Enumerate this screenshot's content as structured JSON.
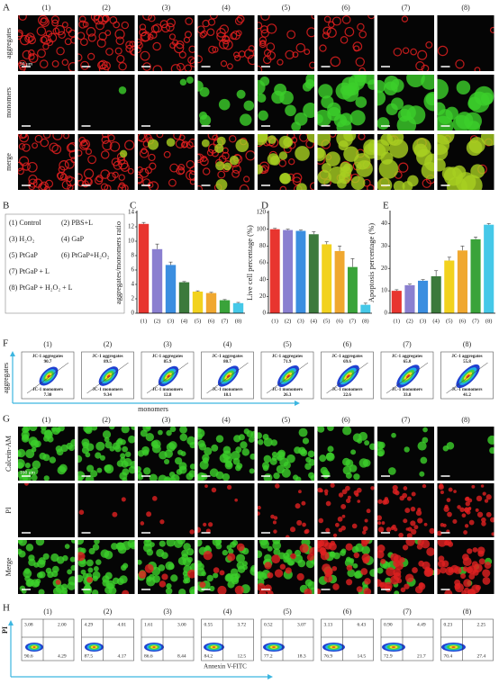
{
  "panel_a": {
    "letter": "A",
    "columns": [
      "(1)",
      "(2)",
      "(3)",
      "(4)",
      "(5)",
      "(6)",
      "(7)",
      "(8)"
    ],
    "rows": [
      "aggregates",
      "monomers",
      "merge"
    ],
    "scale_bar": "50 μm"
  },
  "panel_b": {
    "letter": "B",
    "legend": [
      "(1) Control",
      "(2) PBS+L",
      "(3) H₂O₂",
      "(4) GaP",
      "(5) PtGaP",
      "(6) PtGaP+H₂O₂",
      "(7) PtGaP + L",
      "(8) PtGaP + H₂O₂ + L"
    ]
  },
  "chart_data": [
    {
      "type": "bar",
      "letter": "C",
      "y_label": "aggregates/monomers ratio",
      "categories": [
        "(1)",
        "(2)",
        "(3)",
        "(4)",
        "(5)",
        "(6)",
        "(7)",
        "(8)"
      ],
      "values": [
        12.4,
        8.9,
        6.7,
        4.3,
        3.0,
        2.8,
        1.8,
        1.4
      ],
      "errors": [
        0.2,
        0.7,
        0.4,
        0.1,
        0.1,
        0.1,
        0.1,
        0.1
      ],
      "colors": [
        "#e8352f",
        "#8a7fd0",
        "#3b8ee0",
        "#3c7a3c",
        "#f2d21e",
        "#f0a830",
        "#3aa33a",
        "#45c8e8"
      ],
      "ylim": [
        0,
        14
      ],
      "yticks": [
        0,
        2,
        4,
        6,
        8,
        10,
        12,
        14
      ]
    },
    {
      "type": "bar",
      "letter": "D",
      "y_label": "Live cell percentage (%)",
      "categories": [
        "(1)",
        "(2)",
        "(3)",
        "(4)",
        "(5)",
        "(6)",
        "(7)",
        "(8)"
      ],
      "values": [
        100,
        99,
        98,
        94,
        82,
        74,
        55,
        10
      ],
      "errors": [
        1,
        1,
        1,
        3,
        3,
        6,
        10,
        2
      ],
      "colors": [
        "#e8352f",
        "#8a7fd0",
        "#3b8ee0",
        "#3c7a3c",
        "#f2d21e",
        "#f0a830",
        "#3aa33a",
        "#45c8e8"
      ],
      "ylim": [
        0,
        120
      ],
      "yticks": [
        0,
        20,
        40,
        60,
        80,
        100,
        120
      ]
    },
    {
      "type": "bar",
      "letter": "E",
      "y_label": "Apoptosis percentage (%)",
      "categories": [
        "(1)",
        "(2)",
        "(3)",
        "(4)",
        "(5)",
        "(6)",
        "(7)",
        "(8)"
      ],
      "values": [
        10,
        12.5,
        14.5,
        16.5,
        23.5,
        28,
        33,
        39.5
      ],
      "errors": [
        0.5,
        0.5,
        0.5,
        2.5,
        1.5,
        2,
        1,
        0.5
      ],
      "colors": [
        "#e8352f",
        "#8a7fd0",
        "#3b8ee0",
        "#3c7a3c",
        "#f2d21e",
        "#f0a830",
        "#3aa33a",
        "#45c8e8"
      ],
      "ylim": [
        0,
        45
      ],
      "yticks": [
        0,
        10,
        20,
        30,
        40
      ]
    }
  ],
  "panel_f": {
    "letter": "F",
    "columns": [
      "(1)",
      "(2)",
      "(3)",
      "(4)",
      "(5)",
      "(6)",
      "(7)",
      "(8)"
    ],
    "y_axis": "aggregates",
    "x_axis": "monomers",
    "plots": [
      {
        "agg_label": "JC-1 aggregates",
        "agg": "90.7",
        "mono_label": "JC-1 monomers",
        "mono": "7.30"
      },
      {
        "agg_label": "JC-1 aggregates",
        "agg": "89.5",
        "mono_label": "JC-1 monomers",
        "mono": "9.34"
      },
      {
        "agg_label": "JC-1 aggregates",
        "agg": "85.9",
        "mono_label": "JC-1 monomers",
        "mono": "12.8"
      },
      {
        "agg_label": "JC-1 aggregates",
        "agg": "80.7",
        "mono_label": "JC-1 monomers",
        "mono": "18.1"
      },
      {
        "agg_label": "JC-1 aggregates",
        "agg": "71.9",
        "mono_label": "JC-1 monomers",
        "mono": "26.3"
      },
      {
        "agg_label": "JC-1 aggregates",
        "agg": "69.6",
        "mono_label": "JC-1 monomers",
        "mono": "22.6"
      },
      {
        "agg_label": "JC-1 aggregates",
        "agg": "65.0",
        "mono_label": "JC-1 monomers",
        "mono": "33.8"
      },
      {
        "agg_label": "JC-1 aggregates",
        "agg": "55.8",
        "mono_label": "JC-1 monomers",
        "mono": "41.2"
      }
    ]
  },
  "panel_g": {
    "letter": "G",
    "columns": [
      "(1)",
      "(2)",
      "(3)",
      "(4)",
      "(5)",
      "(6)",
      "(7)",
      "(8)"
    ],
    "rows": [
      "Calcein-AM",
      "PI",
      "Merge"
    ],
    "scale_bar": "100 μm"
  },
  "panel_h": {
    "letter": "H",
    "columns": [
      "(1)",
      "(2)",
      "(3)",
      "(4)",
      "(5)",
      "(6)",
      "(7)",
      "(8)"
    ],
    "y_axis": "PI",
    "x_axis": "Annexin V-FITC",
    "plots": [
      {
        "ul": "3.08",
        "ur": "2.00",
        "ll": "90.6",
        "lr": "4.29"
      },
      {
        "ul": "4.29",
        "ur": "4.01",
        "ll": "87.5",
        "lr": "4.17"
      },
      {
        "ul": "1.61",
        "ur": "3.00",
        "ll": "86.6",
        "lr": "8.44"
      },
      {
        "ul": "0.55",
        "ur": "3.72",
        "ll": "84.2",
        "lr": "12.5"
      },
      {
        "ul": "0.52",
        "ur": "3.07",
        "ll": "77.2",
        "lr": "18.3"
      },
      {
        "ul": "3.13",
        "ur": "6.43",
        "ll": "76.9",
        "lr": "14.5"
      },
      {
        "ul": "0.90",
        "ur": "4.49",
        "ll": "72.9",
        "lr": "21.7"
      },
      {
        "ul": "0.23",
        "ur": "2.25",
        "ll": "70.4",
        "lr": "27.4"
      }
    ]
  }
}
